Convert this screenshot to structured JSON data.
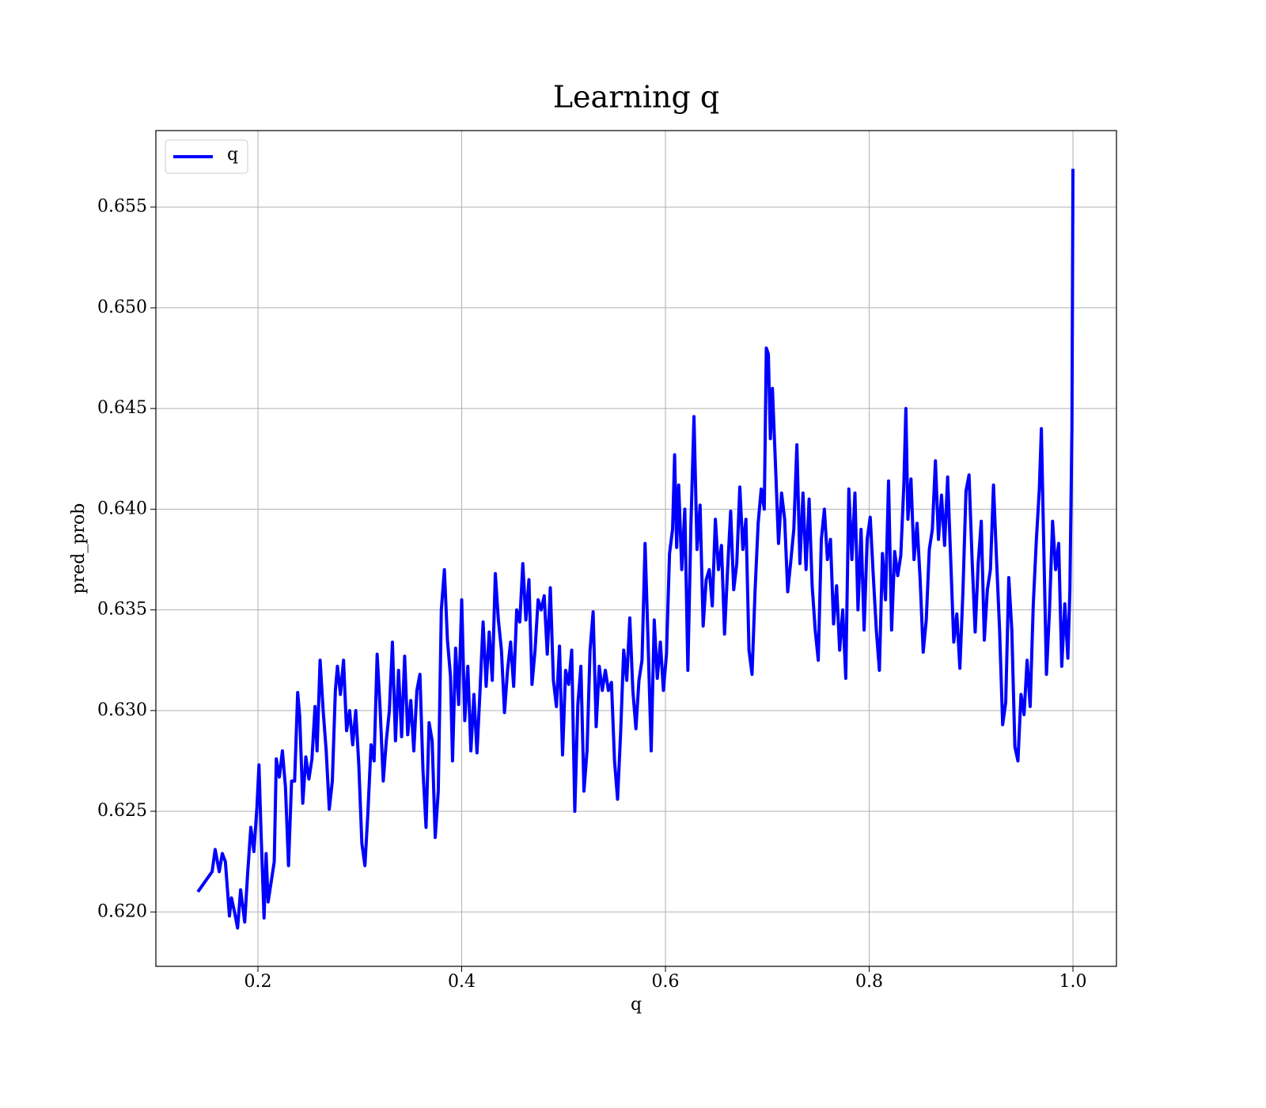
{
  "chart_data": {
    "type": "line",
    "title": "Learning q",
    "xlabel": "q",
    "ylabel": "pred_prob",
    "x": [
      0.141,
      0.155,
      0.158,
      0.162,
      0.165,
      0.168,
      0.172,
      0.174,
      0.177,
      0.18,
      0.183,
      0.187,
      0.19,
      0.193,
      0.196,
      0.199,
      0.201,
      0.203,
      0.206,
      0.208,
      0.21,
      0.213,
      0.216,
      0.218,
      0.221,
      0.224,
      0.227,
      0.23,
      0.233,
      0.236,
      0.239,
      0.241,
      0.244,
      0.247,
      0.25,
      0.253,
      0.256,
      0.258,
      0.261,
      0.264,
      0.267,
      0.27,
      0.273,
      0.276,
      0.278,
      0.281,
      0.284,
      0.287,
      0.29,
      0.293,
      0.296,
      0.299,
      0.302,
      0.305,
      0.308,
      0.311,
      0.314,
      0.317,
      0.32,
      0.323,
      0.326,
      0.329,
      0.332,
      0.335,
      0.338,
      0.341,
      0.344,
      0.347,
      0.35,
      0.353,
      0.356,
      0.359,
      0.362,
      0.365,
      0.368,
      0.371,
      0.374,
      0.377,
      0.38,
      0.383,
      0.386,
      0.389,
      0.391,
      0.394,
      0.397,
      0.4,
      0.403,
      0.406,
      0.409,
      0.412,
      0.415,
      0.418,
      0.421,
      0.424,
      0.427,
      0.43,
      0.433,
      0.436,
      0.439,
      0.442,
      0.445,
      0.448,
      0.451,
      0.454,
      0.457,
      0.46,
      0.463,
      0.466,
      0.469,
      0.472,
      0.475,
      0.478,
      0.481,
      0.484,
      0.487,
      0.49,
      0.493,
      0.496,
      0.499,
      0.502,
      0.505,
      0.508,
      0.511,
      0.514,
      0.517,
      0.52,
      0.523,
      0.526,
      0.529,
      0.532,
      0.535,
      0.538,
      0.541,
      0.544,
      0.547,
      0.55,
      0.553,
      0.556,
      0.559,
      0.562,
      0.565,
      0.568,
      0.571,
      0.574,
      0.577,
      0.58,
      0.583,
      0.586,
      0.589,
      0.592,
      0.595,
      0.598,
      0.601,
      0.604,
      0.607,
      0.609,
      0.611,
      0.613,
      0.616,
      0.619,
      0.622,
      0.625,
      0.628,
      0.631,
      0.634,
      0.637,
      0.64,
      0.643,
      0.646,
      0.649,
      0.652,
      0.655,
      0.658,
      0.661,
      0.664,
      0.667,
      0.67,
      0.673,
      0.676,
      0.679,
      0.682,
      0.685,
      0.688,
      0.691,
      0.694,
      0.697,
      0.699,
      0.701,
      0.703,
      0.705,
      0.708,
      0.711,
      0.714,
      0.717,
      0.72,
      0.723,
      0.726,
      0.729,
      0.732,
      0.735,
      0.738,
      0.741,
      0.744,
      0.747,
      0.75,
      0.753,
      0.756,
      0.759,
      0.762,
      0.765,
      0.768,
      0.771,
      0.774,
      0.777,
      0.78,
      0.783,
      0.786,
      0.789,
      0.792,
      0.795,
      0.798,
      0.801,
      0.804,
      0.807,
      0.81,
      0.813,
      0.816,
      0.819,
      0.822,
      0.825,
      0.828,
      0.831,
      0.834,
      0.836,
      0.838,
      0.841,
      0.844,
      0.847,
      0.85,
      0.853,
      0.856,
      0.859,
      0.862,
      0.865,
      0.868,
      0.871,
      0.874,
      0.877,
      0.88,
      0.883,
      0.886,
      0.889,
      0.892,
      0.895,
      0.898,
      0.901,
      0.904,
      0.907,
      0.91,
      0.913,
      0.916,
      0.919,
      0.922,
      0.925,
      0.928,
      0.931,
      0.934,
      0.937,
      0.94,
      0.943,
      0.946,
      0.949,
      0.952,
      0.955,
      0.958,
      0.961,
      0.964,
      0.967,
      0.969,
      0.971,
      0.974,
      0.977,
      0.98,
      0.983,
      0.986,
      0.989,
      0.992,
      0.995,
      0.997,
      0.999,
      1.0
    ],
    "series": [
      {
        "name": "q",
        "color": "#0000ff",
        "values": [
          0.621,
          0.622,
          0.6231,
          0.622,
          0.6229,
          0.6225,
          0.6198,
          0.6207,
          0.62,
          0.6192,
          0.6211,
          0.6195,
          0.622,
          0.6242,
          0.623,
          0.6252,
          0.6273,
          0.624,
          0.6197,
          0.6229,
          0.6205,
          0.6215,
          0.6225,
          0.6276,
          0.6267,
          0.628,
          0.6262,
          0.6223,
          0.6265,
          0.6265,
          0.6309,
          0.6297,
          0.6254,
          0.6277,
          0.6266,
          0.6276,
          0.6302,
          0.628,
          0.6325,
          0.63,
          0.628,
          0.6251,
          0.6265,
          0.631,
          0.6322,
          0.6308,
          0.6325,
          0.629,
          0.63,
          0.6283,
          0.63,
          0.6273,
          0.6234,
          0.6223,
          0.625,
          0.6283,
          0.6275,
          0.6328,
          0.63,
          0.6265,
          0.6285,
          0.63,
          0.6334,
          0.6285,
          0.632,
          0.6287,
          0.6327,
          0.6288,
          0.6305,
          0.628,
          0.631,
          0.6318,
          0.627,
          0.6242,
          0.6294,
          0.6285,
          0.6237,
          0.626,
          0.635,
          0.637,
          0.6335,
          0.6317,
          0.6275,
          0.6331,
          0.6303,
          0.6355,
          0.6295,
          0.6322,
          0.628,
          0.6308,
          0.6279,
          0.631,
          0.6344,
          0.6312,
          0.6339,
          0.6315,
          0.6368,
          0.6345,
          0.633,
          0.6299,
          0.632,
          0.6334,
          0.6312,
          0.635,
          0.6344,
          0.6373,
          0.6345,
          0.6365,
          0.6313,
          0.633,
          0.6355,
          0.635,
          0.6357,
          0.6328,
          0.6361,
          0.6315,
          0.6302,
          0.6332,
          0.6278,
          0.632,
          0.6313,
          0.633,
          0.625,
          0.6303,
          0.6322,
          0.626,
          0.628,
          0.633,
          0.6349,
          0.6292,
          0.6322,
          0.631,
          0.632,
          0.631,
          0.6314,
          0.6275,
          0.6256,
          0.6289,
          0.633,
          0.6315,
          0.6346,
          0.631,
          0.6291,
          0.6315,
          0.6325,
          0.6383,
          0.6333,
          0.628,
          0.6345,
          0.6316,
          0.6334,
          0.631,
          0.6328,
          0.6378,
          0.639,
          0.6427,
          0.6381,
          0.6412,
          0.637,
          0.64,
          0.632,
          0.6392,
          0.6446,
          0.638,
          0.6402,
          0.6342,
          0.6365,
          0.637,
          0.6352,
          0.6395,
          0.637,
          0.6382,
          0.6338,
          0.637,
          0.6399,
          0.636,
          0.6373,
          0.6411,
          0.638,
          0.6395,
          0.633,
          0.6318,
          0.636,
          0.6393,
          0.641,
          0.64,
          0.648,
          0.6477,
          0.6435,
          0.646,
          0.6422,
          0.6383,
          0.6408,
          0.6395,
          0.6359,
          0.6374,
          0.639,
          0.6432,
          0.6373,
          0.6408,
          0.637,
          0.6405,
          0.6362,
          0.634,
          0.6325,
          0.6385,
          0.64,
          0.6375,
          0.6385,
          0.6343,
          0.6362,
          0.633,
          0.635,
          0.6316,
          0.641,
          0.6375,
          0.6408,
          0.635,
          0.639,
          0.634,
          0.6385,
          0.6396,
          0.6367,
          0.634,
          0.632,
          0.6378,
          0.6355,
          0.6414,
          0.634,
          0.6379,
          0.6367,
          0.6377,
          0.6412,
          0.645,
          0.6395,
          0.6415,
          0.6375,
          0.6393,
          0.6365,
          0.6329,
          0.6345,
          0.638,
          0.639,
          0.6424,
          0.6385,
          0.6407,
          0.6382,
          0.6416,
          0.6375,
          0.6334,
          0.6348,
          0.6321,
          0.6359,
          0.6409,
          0.6417,
          0.6375,
          0.6339,
          0.6373,
          0.6394,
          0.6335,
          0.636,
          0.637,
          0.6412,
          0.6375,
          0.634,
          0.6293,
          0.6304,
          0.6366,
          0.634,
          0.6282,
          0.6275,
          0.6308,
          0.6298,
          0.6325,
          0.6302,
          0.6352,
          0.6384,
          0.641,
          0.644,
          0.639,
          0.6318,
          0.635,
          0.6394,
          0.637,
          0.6383,
          0.6322,
          0.6353,
          0.6326,
          0.636,
          0.644,
          0.6569
        ]
      }
    ],
    "xlim": [
      0.0998,
      1.0427
    ],
    "ylim": [
      0.6173,
      0.6588
    ],
    "xticks": [
      0.2,
      0.4,
      0.6,
      0.8,
      {
        "value": 1,
        "label": "1.0"
      }
    ],
    "yticks": [
      {
        "value": 0.62,
        "label": "0.620"
      },
      0.625,
      {
        "value": 0.63,
        "label": "0.630"
      },
      0.635,
      {
        "value": 0.64,
        "label": "0.640"
      },
      0.645,
      {
        "value": 0.65,
        "label": "0.650"
      },
      0.655
    ],
    "grid": true,
    "legend": "upper left"
  }
}
